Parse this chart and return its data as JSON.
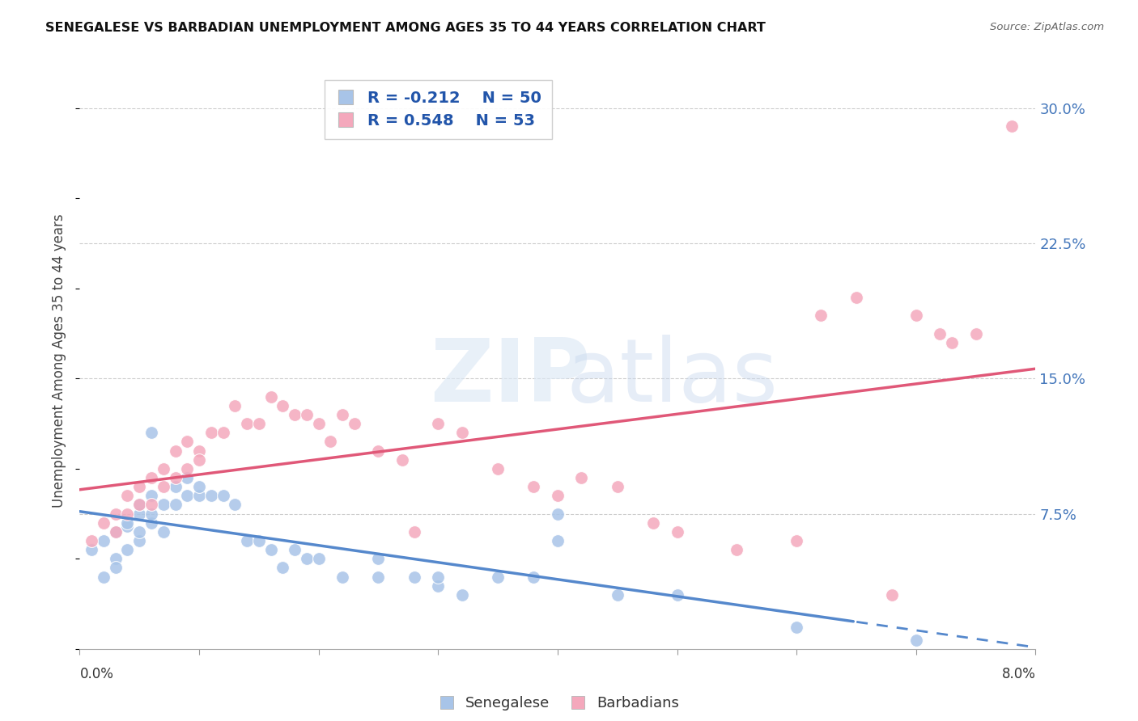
{
  "title": "SENEGALESE VS BARBADIAN UNEMPLOYMENT AMONG AGES 35 TO 44 YEARS CORRELATION CHART",
  "source": "Source: ZipAtlas.com",
  "ylabel": "Unemployment Among Ages 35 to 44 years",
  "yticks": [
    0.0,
    0.075,
    0.15,
    0.225,
    0.3
  ],
  "ytick_labels": [
    "",
    "7.5%",
    "15.0%",
    "22.5%",
    "30.0%"
  ],
  "xlim": [
    0.0,
    0.08
  ],
  "ylim": [
    0.0,
    0.32
  ],
  "senegalese_color": "#a8c4e8",
  "barbadian_color": "#f4a8bc",
  "trendline_blue": "#5588cc",
  "trendline_pink": "#e05878",
  "legend_R_blue": "-0.212",
  "legend_N_blue": "50",
  "legend_R_pink": "0.548",
  "legend_N_pink": "53",
  "legend_label_blue": "Senegalese",
  "legend_label_pink": "Barbadians",
  "sen_x": [
    0.001,
    0.002,
    0.002,
    0.003,
    0.003,
    0.003,
    0.004,
    0.004,
    0.004,
    0.005,
    0.005,
    0.005,
    0.005,
    0.006,
    0.006,
    0.006,
    0.006,
    0.007,
    0.007,
    0.008,
    0.008,
    0.009,
    0.009,
    0.01,
    0.01,
    0.011,
    0.012,
    0.013,
    0.014,
    0.015,
    0.016,
    0.017,
    0.018,
    0.019,
    0.02,
    0.022,
    0.025,
    0.025,
    0.028,
    0.03,
    0.03,
    0.032,
    0.035,
    0.038,
    0.04,
    0.04,
    0.045,
    0.05,
    0.06,
    0.07
  ],
  "sen_y": [
    0.055,
    0.04,
    0.06,
    0.05,
    0.045,
    0.065,
    0.055,
    0.068,
    0.07,
    0.06,
    0.065,
    0.075,
    0.08,
    0.07,
    0.075,
    0.085,
    0.12,
    0.065,
    0.08,
    0.09,
    0.08,
    0.095,
    0.085,
    0.085,
    0.09,
    0.085,
    0.085,
    0.08,
    0.06,
    0.06,
    0.055,
    0.045,
    0.055,
    0.05,
    0.05,
    0.04,
    0.04,
    0.05,
    0.04,
    0.035,
    0.04,
    0.03,
    0.04,
    0.04,
    0.06,
    0.075,
    0.03,
    0.03,
    0.012,
    0.005
  ],
  "bar_x": [
    0.001,
    0.002,
    0.003,
    0.003,
    0.004,
    0.004,
    0.005,
    0.005,
    0.006,
    0.006,
    0.007,
    0.007,
    0.008,
    0.008,
    0.009,
    0.009,
    0.01,
    0.01,
    0.011,
    0.012,
    0.013,
    0.014,
    0.015,
    0.016,
    0.017,
    0.018,
    0.019,
    0.02,
    0.021,
    0.022,
    0.023,
    0.025,
    0.027,
    0.028,
    0.03,
    0.032,
    0.035,
    0.038,
    0.04,
    0.042,
    0.045,
    0.048,
    0.05,
    0.055,
    0.06,
    0.062,
    0.065,
    0.068,
    0.07,
    0.072,
    0.073,
    0.075,
    0.078
  ],
  "bar_y": [
    0.06,
    0.07,
    0.065,
    0.075,
    0.075,
    0.085,
    0.08,
    0.09,
    0.08,
    0.095,
    0.09,
    0.1,
    0.095,
    0.11,
    0.1,
    0.115,
    0.11,
    0.105,
    0.12,
    0.12,
    0.135,
    0.125,
    0.125,
    0.14,
    0.135,
    0.13,
    0.13,
    0.125,
    0.115,
    0.13,
    0.125,
    0.11,
    0.105,
    0.065,
    0.125,
    0.12,
    0.1,
    0.09,
    0.085,
    0.095,
    0.09,
    0.07,
    0.065,
    0.055,
    0.06,
    0.185,
    0.195,
    0.03,
    0.185,
    0.175,
    0.17,
    0.175,
    0.29
  ]
}
